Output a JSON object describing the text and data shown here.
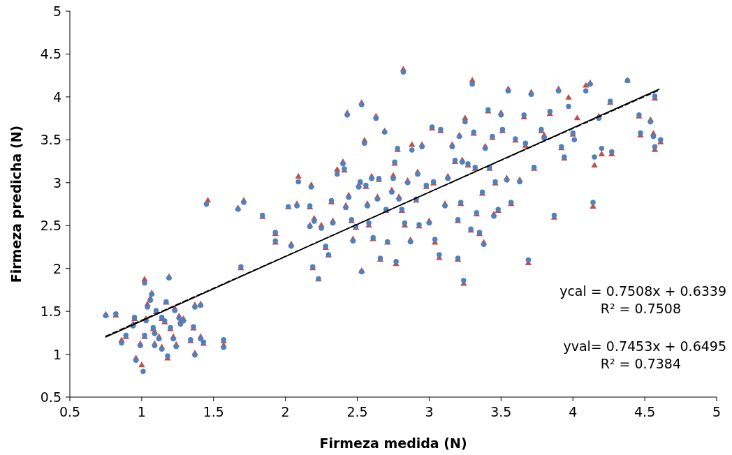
{
  "chart_data": {
    "type": "scatter",
    "xlabel": "Firmeza medida (N)",
    "ylabel": "Firmeza predicha (N)",
    "xlim": [
      0.5,
      5
    ],
    "ylim": [
      0.5,
      5
    ],
    "xticks": [
      0.5,
      1,
      1.5,
      2,
      2.5,
      3,
      3.5,
      4,
      4.5,
      5
    ],
    "yticks": [
      0.5,
      1,
      1.5,
      2,
      2.5,
      3,
      3.5,
      4,
      4.5,
      5
    ],
    "annotations": [
      "ycal = 0.7508x + 0.6339",
      "R² = 0.7508",
      "yval= 0.7453x + 0.6495",
      "R² = 0.7384"
    ],
    "series": [
      {
        "color": "#c0504d",
        "marker": "triangle",
        "x": [
          0.75,
          0.82,
          0.86,
          0.89,
          0.94,
          0.95,
          0.96,
          0.99,
          1.0,
          1.02,
          1.02,
          1.03,
          1.04,
          1.06,
          1.07,
          1.08,
          1.09,
          1.09,
          1.1,
          1.12,
          1.14,
          1.14,
          1.16,
          1.17,
          1.18,
          1.19,
          1.2,
          1.22,
          1.23,
          1.24,
          1.26,
          1.27,
          1.29,
          1.34,
          1.36,
          1.37,
          1.37,
          1.41,
          1.41,
          1.43,
          1.46,
          1.57,
          1.57,
          1.67,
          1.69,
          1.71,
          1.84,
          1.93,
          1.93,
          2.02,
          2.04,
          2.08,
          2.09,
          2.17,
          2.17,
          2.18,
          2.19,
          2.2,
          2.23,
          2.25,
          2.28,
          2.3,
          2.32,
          2.33,
          2.36,
          2.4,
          2.41,
          2.42,
          2.43,
          2.44,
          2.46,
          2.47,
          2.49,
          2.51,
          2.52,
          2.53,
          2.53,
          2.55,
          2.56,
          2.57,
          2.58,
          2.6,
          2.61,
          2.63,
          2.64,
          2.65,
          2.66,
          2.69,
          2.7,
          2.71,
          2.74,
          2.75,
          2.76,
          2.77,
          2.78,
          2.79,
          2.81,
          2.82,
          2.83,
          2.85,
          2.87,
          2.88,
          2.91,
          2.92,
          2.93,
          2.95,
          2.98,
          3.0,
          3.02,
          3.03,
          3.04,
          3.07,
          3.08,
          3.11,
          3.13,
          3.16,
          3.18,
          3.2,
          3.2,
          3.21,
          3.22,
          3.23,
          3.24,
          3.25,
          3.27,
          3.29,
          3.3,
          3.31,
          3.32,
          3.33,
          3.35,
          3.37,
          3.38,
          3.39,
          3.41,
          3.42,
          3.44,
          3.45,
          3.46,
          3.48,
          3.5,
          3.51,
          3.54,
          3.55,
          3.57,
          3.6,
          3.63,
          3.66,
          3.67,
          3.69,
          3.71,
          3.73,
          3.78,
          3.8,
          3.84,
          3.87,
          3.9,
          3.92,
          3.94,
          3.97,
          4.0,
          4.03,
          4.09,
          4.12,
          4.14,
          4.15,
          4.18,
          4.2,
          4.26,
          4.27,
          4.38,
          4.46,
          4.47,
          4.54,
          4.56,
          4.57,
          4.57,
          4.61
        ],
        "values": [
          1.46,
          1.45,
          1.16,
          1.2,
          1.35,
          1.41,
          0.95,
          1.12,
          0.87,
          1.87,
          1.2,
          1.41,
          1.58,
          1.65,
          1.71,
          1.29,
          1.12,
          1.26,
          1.49,
          1.2,
          1.08,
          1.41,
          1.37,
          1.6,
          0.95,
          1.9,
          1.29,
          1.2,
          1.53,
          1.11,
          1.44,
          1.38,
          1.41,
          1.15,
          1.3,
          1.01,
          1.57,
          1.58,
          1.2,
          1.12,
          2.79,
          1.15,
          1.1,
          2.7,
          2.0,
          2.79,
          2.6,
          2.4,
          2.3,
          2.71,
          2.28,
          2.75,
          3.07,
          2.71,
          2.5,
          2.97,
          2.0,
          2.58,
          1.87,
          2.5,
          2.24,
          2.15,
          2.77,
          2.55,
          3.15,
          3.24,
          3.14,
          2.73,
          3.81,
          2.85,
          2.55,
          2.34,
          2.47,
          2.97,
          3.0,
          3.93,
          1.97,
          3.49,
          2.95,
          2.75,
          2.5,
          3.07,
          2.34,
          3.77,
          2.83,
          3.03,
          2.1,
          3.6,
          2.67,
          2.3,
          2.91,
          3.08,
          3.22,
          2.05,
          3.38,
          2.83,
          2.67,
          4.32,
          2.5,
          3.02,
          2.33,
          3.44,
          2.79,
          3.12,
          2.49,
          3.44,
          2.95,
          2.55,
          3.63,
          2.99,
          2.3,
          2.12,
          3.6,
          2.75,
          3.07,
          3.44,
          3.24,
          2.55,
          2.1,
          3.55,
          2.75,
          3.26,
          1.82,
          3.75,
          3.2,
          2.44,
          4.19,
          3.57,
          3.16,
          2.63,
          2.4,
          2.87,
          2.3,
          3.42,
          3.83,
          3.16,
          3.52,
          2.63,
          2.99,
          2.67,
          3.81,
          3.6,
          3.05,
          4.09,
          2.75,
          3.49,
          3.03,
          3.76,
          3.43,
          2.06,
          4.05,
          3.16,
          3.6,
          3.55,
          3.8,
          2.59,
          4.09,
          3.4,
          3.28,
          3.99,
          3.56,
          3.75,
          4.13,
          4.16,
          2.72,
          3.2,
          3.77,
          3.33,
          3.93,
          3.33,
          4.19,
          3.77,
          3.55,
          3.73,
          3.57,
          3.38,
          3.98,
          3.47
        ]
      },
      {
        "color": "#4f81bd",
        "marker": "circle",
        "x": [
          0.75,
          0.82,
          0.86,
          0.89,
          0.94,
          0.95,
          0.96,
          0.99,
          1.01,
          1.02,
          1.02,
          1.03,
          1.04,
          1.06,
          1.07,
          1.08,
          1.09,
          1.09,
          1.1,
          1.12,
          1.14,
          1.14,
          1.16,
          1.17,
          1.18,
          1.19,
          1.2,
          1.22,
          1.23,
          1.24,
          1.26,
          1.27,
          1.29,
          1.34,
          1.36,
          1.37,
          1.37,
          1.41,
          1.41,
          1.43,
          1.45,
          1.57,
          1.57,
          1.67,
          1.69,
          1.71,
          1.84,
          1.93,
          1.93,
          2.02,
          2.04,
          2.08,
          2.09,
          2.17,
          2.17,
          2.18,
          2.19,
          2.2,
          2.23,
          2.25,
          2.28,
          2.3,
          2.32,
          2.33,
          2.36,
          2.4,
          2.41,
          2.42,
          2.43,
          2.44,
          2.46,
          2.47,
          2.49,
          2.51,
          2.52,
          2.53,
          2.53,
          2.55,
          2.56,
          2.57,
          2.58,
          2.6,
          2.61,
          2.63,
          2.64,
          2.65,
          2.66,
          2.69,
          2.7,
          2.71,
          2.74,
          2.75,
          2.76,
          2.77,
          2.78,
          2.79,
          2.81,
          2.82,
          2.83,
          2.85,
          2.87,
          2.88,
          2.91,
          2.92,
          2.93,
          2.95,
          2.98,
          3.0,
          3.02,
          3.03,
          3.04,
          3.07,
          3.08,
          3.11,
          3.13,
          3.16,
          3.18,
          3.2,
          3.2,
          3.21,
          3.22,
          3.23,
          3.24,
          3.25,
          3.27,
          3.29,
          3.3,
          3.31,
          3.32,
          3.33,
          3.35,
          3.37,
          3.38,
          3.39,
          3.41,
          3.42,
          3.44,
          3.45,
          3.46,
          3.48,
          3.5,
          3.51,
          3.54,
          3.55,
          3.57,
          3.6,
          3.63,
          3.66,
          3.67,
          3.69,
          3.71,
          3.73,
          3.78,
          3.8,
          3.84,
          3.87,
          3.9,
          3.92,
          3.94,
          3.97,
          4.0,
          4.01,
          4.09,
          4.12,
          4.14,
          4.15,
          4.18,
          4.2,
          4.26,
          4.27,
          4.38,
          4.46,
          4.47,
          4.54,
          4.56,
          4.57,
          4.57,
          4.61
        ],
        "values": [
          1.45,
          1.47,
          1.13,
          1.22,
          1.33,
          1.43,
          0.93,
          1.1,
          0.8,
          1.83,
          1.22,
          1.39,
          1.55,
          1.63,
          1.7,
          1.31,
          1.1,
          1.24,
          1.51,
          1.18,
          1.06,
          1.43,
          1.39,
          1.61,
          0.98,
          1.89,
          1.31,
          1.18,
          1.51,
          1.09,
          1.42,
          1.35,
          1.39,
          1.17,
          1.32,
          0.99,
          1.55,
          1.57,
          1.18,
          1.14,
          2.75,
          1.17,
          1.08,
          2.69,
          2.02,
          2.77,
          2.62,
          2.42,
          2.32,
          2.72,
          2.26,
          2.73,
          3.01,
          2.73,
          2.49,
          2.95,
          2.02,
          2.55,
          1.88,
          2.47,
          2.26,
          2.16,
          2.79,
          2.53,
          3.1,
          3.22,
          3.16,
          2.71,
          3.79,
          2.83,
          2.57,
          2.32,
          2.49,
          2.95,
          3.01,
          3.91,
          1.96,
          3.46,
          2.97,
          2.73,
          2.53,
          3.05,
          2.36,
          3.75,
          2.81,
          3.05,
          2.12,
          3.59,
          2.69,
          2.31,
          2.89,
          3.05,
          3.24,
          2.08,
          3.4,
          2.81,
          2.69,
          4.29,
          2.53,
          3.0,
          2.31,
          3.38,
          2.81,
          3.1,
          2.51,
          3.42,
          2.97,
          2.53,
          3.65,
          3.01,
          2.34,
          2.16,
          3.62,
          2.73,
          3.05,
          3.42,
          3.26,
          2.57,
          2.12,
          3.54,
          2.77,
          3.24,
          1.86,
          3.71,
          3.22,
          2.46,
          4.15,
          3.59,
          3.18,
          2.65,
          2.42,
          2.89,
          2.28,
          3.4,
          3.85,
          3.18,
          3.54,
          2.61,
          3.01,
          2.69,
          3.79,
          3.62,
          3.03,
          4.07,
          2.77,
          3.51,
          3.01,
          3.79,
          3.46,
          2.1,
          4.03,
          3.18,
          3.62,
          3.52,
          3.83,
          2.62,
          4.07,
          3.42,
          3.3,
          3.89,
          3.58,
          3.5,
          4.07,
          4.15,
          2.77,
          3.3,
          3.75,
          3.4,
          3.95,
          3.36,
          4.19,
          3.79,
          3.58,
          3.71,
          3.54,
          3.42,
          4.01,
          3.5
        ]
      },
      {
        "type": "line",
        "color": "#000000",
        "line_style": "solid",
        "x": [
          0.75,
          4.6
        ],
        "values": [
          1.2,
          4.09
        ]
      },
      {
        "type": "line",
        "color": "#000000",
        "line_style": "dashed",
        "x": [
          0.75,
          4.6
        ],
        "values": [
          1.21,
          4.08
        ]
      }
    ]
  }
}
